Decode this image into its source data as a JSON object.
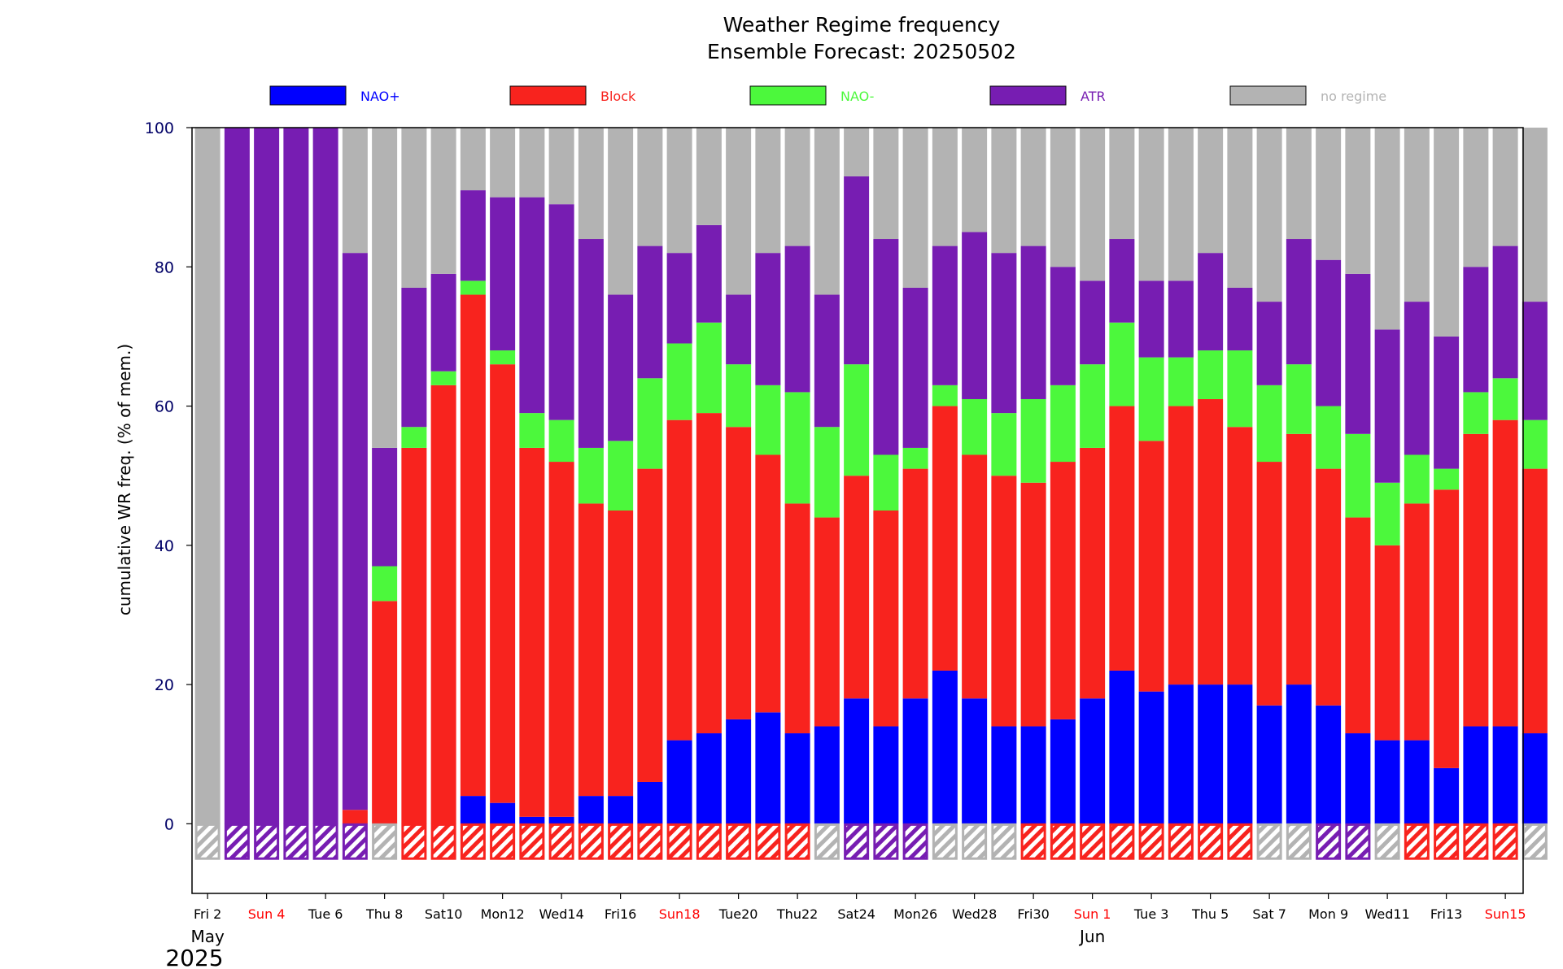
{
  "chart_data": {
    "type": "bar",
    "stacked": true,
    "title": "Weather Regime frequency",
    "subtitle": "Ensemble Forecast: 20250502",
    "ylabel": "cumulative WR freq. (% of mem.)",
    "ylim": [
      -10,
      100
    ],
    "yticks": [
      0,
      20,
      40,
      60,
      80,
      100
    ],
    "grid": false,
    "legend_position": "top",
    "legend": [
      {
        "name": "NAO+",
        "color": "#0000ff"
      },
      {
        "name": "Block",
        "color": "#f8231e"
      },
      {
        "name": "NAO-",
        "color": "#4cf83c"
      },
      {
        "name": "ATR",
        "color": "#771db2"
      },
      {
        "name": "no regime",
        "color": "#b3b3b3"
      }
    ],
    "categories": [
      "May 2",
      "May 3",
      "May 4",
      "May 5",
      "May 6",
      "May 7",
      "May 8",
      "May 9",
      "May 10",
      "May 11",
      "May 12",
      "May 13",
      "May 14",
      "May 15",
      "May 16",
      "May 17",
      "May 18",
      "May 19",
      "May 20",
      "May 21",
      "May 22",
      "May 23",
      "May 24",
      "May 25",
      "May 26",
      "May 27",
      "May 28",
      "May 29",
      "May 30",
      "May 31",
      "Jun 1",
      "Jun 2",
      "Jun 3",
      "Jun 4",
      "Jun 5",
      "Jun 6",
      "Jun 7",
      "Jun 8",
      "Jun 9",
      "Jun 10",
      "Jun 11",
      "Jun 12",
      "Jun 13",
      "Jun 14",
      "Jun 15",
      "Jun 16"
    ],
    "series": [
      {
        "name": "NAO+",
        "values": [
          0,
          0,
          0,
          0,
          0,
          0,
          0,
          0,
          0,
          4,
          3,
          1,
          1,
          4,
          4,
          6,
          12,
          13,
          15,
          16,
          13,
          14,
          18,
          14,
          18,
          22,
          18,
          14,
          14,
          15,
          18,
          22,
          19,
          20,
          20,
          20,
          17,
          20,
          17,
          13,
          12,
          12,
          8,
          14,
          14,
          13
        ]
      },
      {
        "name": "Block",
        "values": [
          0,
          0,
          0,
          0,
          0,
          2,
          32,
          54,
          63,
          72,
          63,
          53,
          51,
          42,
          41,
          45,
          46,
          46,
          42,
          37,
          33,
          30,
          32,
          31,
          33,
          38,
          35,
          36,
          35,
          37,
          36,
          38,
          36,
          40,
          41,
          37,
          35,
          36,
          34,
          31,
          28,
          34,
          40,
          42,
          44,
          38
        ]
      },
      {
        "name": "NAO-",
        "values": [
          0,
          0,
          0,
          0,
          0,
          0,
          5,
          3,
          2,
          2,
          2,
          5,
          6,
          8,
          10,
          13,
          11,
          13,
          9,
          10,
          16,
          13,
          16,
          8,
          3,
          3,
          8,
          9,
          12,
          11,
          12,
          12,
          12,
          7,
          7,
          11,
          11,
          10,
          9,
          12,
          9,
          7,
          3,
          6,
          6,
          7
        ]
      },
      {
        "name": "ATR",
        "values": [
          0,
          100,
          100,
          100,
          100,
          80,
          17,
          20,
          14,
          13,
          22,
          31,
          31,
          30,
          21,
          19,
          13,
          14,
          10,
          19,
          21,
          19,
          27,
          31,
          23,
          20,
          24,
          23,
          22,
          17,
          12,
          12,
          11,
          11,
          14,
          9,
          12,
          18,
          21,
          23,
          22,
          22,
          19,
          18,
          19,
          17
        ]
      },
      {
        "name": "no regime",
        "values": [
          100,
          0,
          0,
          0,
          0,
          18,
          46,
          23,
          21,
          9,
          10,
          10,
          11,
          16,
          24,
          17,
          18,
          14,
          24,
          18,
          17,
          24,
          7,
          16,
          23,
          17,
          15,
          18,
          17,
          20,
          22,
          16,
          22,
          22,
          18,
          23,
          25,
          16,
          19,
          21,
          29,
          25,
          30,
          20,
          17,
          25
        ]
      }
    ],
    "dominant_regime": [
      "no regime",
      "ATR",
      "ATR",
      "ATR",
      "ATR",
      "ATR",
      "no regime",
      "Block",
      "Block",
      "Block",
      "Block",
      "Block",
      "Block",
      "Block",
      "Block",
      "Block",
      "Block",
      "Block",
      "Block",
      "Block",
      "Block",
      "no regime",
      "ATR",
      "ATR",
      "ATR",
      "no regime",
      "no regime",
      "no regime",
      "Block",
      "Block",
      "Block",
      "Block",
      "Block",
      "Block",
      "Block",
      "Block",
      "no regime",
      "no regime",
      "ATR",
      "ATR",
      "no regime",
      "Block",
      "Block",
      "Block",
      "Block",
      "no regime"
    ],
    "x_tick_labels": [
      {
        "index": 0,
        "label": "Fri 2",
        "weekend": false
      },
      {
        "index": 2,
        "label": "Sun 4",
        "weekend": true
      },
      {
        "index": 4,
        "label": "Tue 6",
        "weekend": false
      },
      {
        "index": 6,
        "label": "Thu 8",
        "weekend": false
      },
      {
        "index": 8,
        "label": "Sat10",
        "weekend": false
      },
      {
        "index": 10,
        "label": "Mon12",
        "weekend": false
      },
      {
        "index": 12,
        "label": "Wed14",
        "weekend": false
      },
      {
        "index": 14,
        "label": "Fri16",
        "weekend": false
      },
      {
        "index": 16,
        "label": "Sun18",
        "weekend": true
      },
      {
        "index": 18,
        "label": "Tue20",
        "weekend": false
      },
      {
        "index": 20,
        "label": "Thu22",
        "weekend": false
      },
      {
        "index": 22,
        "label": "Sat24",
        "weekend": false
      },
      {
        "index": 24,
        "label": "Mon26",
        "weekend": false
      },
      {
        "index": 26,
        "label": "Wed28",
        "weekend": false
      },
      {
        "index": 28,
        "label": "Fri30",
        "weekend": false
      },
      {
        "index": 30,
        "label": "Sun 1",
        "weekend": true
      },
      {
        "index": 32,
        "label": "Tue 3",
        "weekend": false
      },
      {
        "index": 34,
        "label": "Thu 5",
        "weekend": false
      },
      {
        "index": 36,
        "label": "Sat 7",
        "weekend": false
      },
      {
        "index": 38,
        "label": "Mon 9",
        "weekend": false
      },
      {
        "index": 40,
        "label": "Wed11",
        "weekend": false
      },
      {
        "index": 42,
        "label": "Fri13",
        "weekend": false
      },
      {
        "index": 44,
        "label": "Sun15",
        "weekend": true
      }
    ],
    "month_labels": [
      {
        "index": 0,
        "label": "May"
      },
      {
        "index": 30,
        "label": "Jun"
      }
    ],
    "year_label": "2025",
    "colors": {
      "weekday_tick": "#000000",
      "weekend_tick": "#ff0000",
      "ytick": "#000066"
    }
  }
}
